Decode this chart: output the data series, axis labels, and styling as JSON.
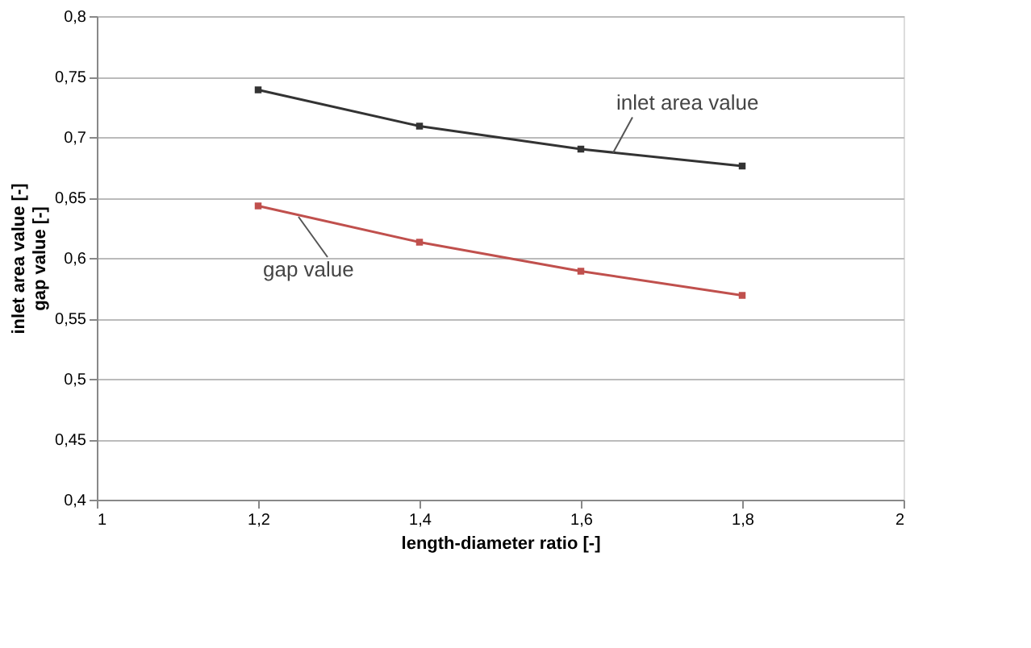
{
  "chart_data": {
    "type": "line",
    "xlabel": "length-diameter ratio [-]",
    "ylabel": [
      "inlet area value [-]",
      "gap value [-]"
    ],
    "x": [
      1.2,
      1.4,
      1.6,
      1.8
    ],
    "series": [
      {
        "color": "#333333",
        "values": [
          0.739,
          0.709,
          0.69,
          0.676
        ]
      },
      {
        "color": "#c0504d",
        "values": [
          0.643,
          0.613,
          0.589,
          0.569
        ]
      }
    ],
    "annotations": [
      {
        "text": "inlet area value",
        "x": 1.64,
        "y": 0.687
      },
      {
        "text": "gap value",
        "x": 1.25,
        "y": 0.634
      }
    ],
    "xlim": [
      1,
      2
    ],
    "xticks": [
      1,
      {
        "value": 1.2,
        "label": "1,2"
      },
      {
        "value": 1.4,
        "label": "1,4"
      },
      {
        "value": 1.6,
        "label": "1,6"
      },
      {
        "value": 1.8,
        "label": "1,8"
      },
      2
    ],
    "ylim": [
      0.4,
      0.8
    ],
    "yticks": [
      {
        "value": 0.4,
        "label": "0,4"
      },
      {
        "value": 0.45,
        "label": "0,45"
      },
      {
        "value": 0.5,
        "label": "0,5"
      },
      {
        "value": 0.55,
        "label": "0,55"
      },
      {
        "value": 0.6,
        "label": "0,6"
      },
      {
        "value": 0.65,
        "label": "0,65"
      },
      {
        "value": 0.7,
        "label": "0,7"
      },
      {
        "value": 0.75,
        "label": "0,75"
      },
      {
        "value": 0.8,
        "label": "0,8"
      }
    ],
    "grid": "y",
    "marker": "square",
    "line_style": "solid"
  }
}
